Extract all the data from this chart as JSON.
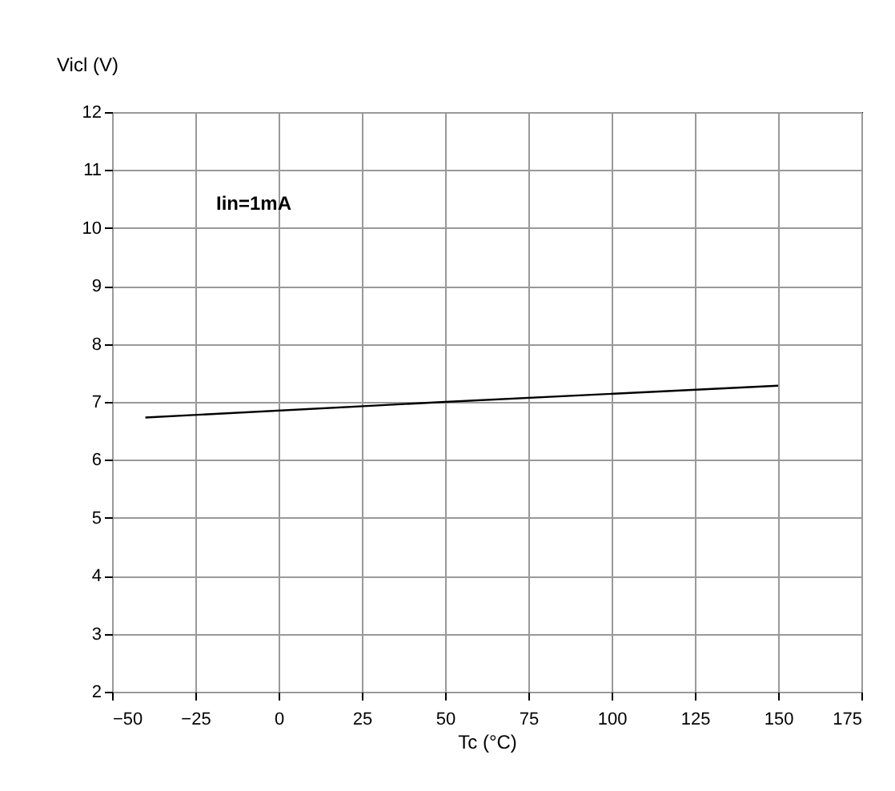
{
  "chart_data": {
    "type": "line",
    "xlabel": "Tc (°C)",
    "ylabel": "Vicl (V)",
    "annotations": [
      "Iin=1mA"
    ],
    "x": [
      -40,
      50,
      150
    ],
    "series": [
      {
        "color": "#000000",
        "values": [
          6.73,
          7.0,
          7.28
        ]
      }
    ],
    "xlim": [
      -50,
      175
    ],
    "xticks": [
      -50,
      -25,
      0,
      25,
      50,
      75,
      100,
      125,
      150,
      175
    ],
    "ylim": [
      2,
      12
    ],
    "yticks": [
      2,
      3,
      4,
      5,
      6,
      7,
      8,
      9,
      10,
      11,
      12
    ],
    "grid": true,
    "marker": "none",
    "line_style": "solid"
  }
}
